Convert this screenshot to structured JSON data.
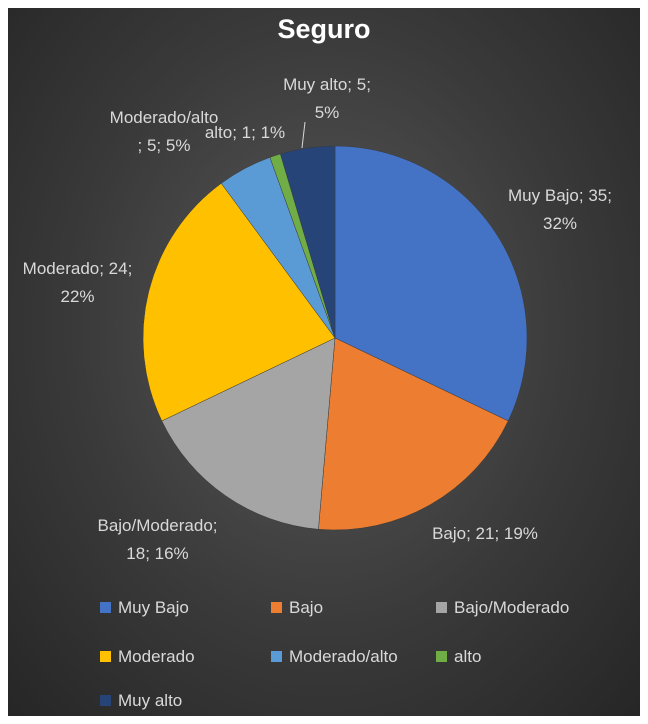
{
  "chart_data": {
    "type": "pie",
    "title": "Seguro",
    "categories": [
      "Muy Bajo",
      "Bajo",
      "Bajo/Moderado",
      "Moderado",
      "Moderado/alto",
      "alto",
      "Muy alto"
    ],
    "values": [
      35,
      21,
      18,
      24,
      5,
      1,
      5
    ],
    "value_labels": [
      "Muy Bajo; 35; 32%",
      "Bajo; 21; 19%",
      "Bajo/Moderado; 18; 16%",
      "Moderado; 24; 22%",
      "Moderado/alto; 5; 5%",
      "alto; 1; 1%",
      "Muy alto; 5; 5%"
    ],
    "colors": [
      "#4472c4",
      "#ed7d31",
      "#a5a5a5",
      "#ffc000",
      "#5b9bd5",
      "#70ad47",
      "#264478"
    ],
    "legend": "bottom"
  }
}
